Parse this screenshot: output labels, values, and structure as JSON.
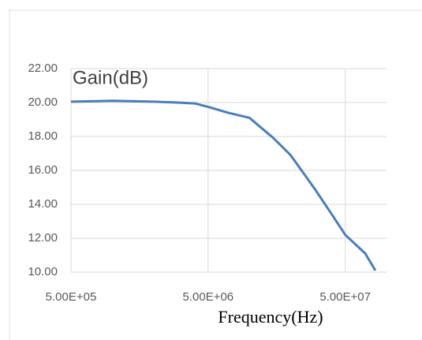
{
  "chart_data": {
    "type": "line",
    "title": "Gain(dB)",
    "x_label": "Frequency(Hz)",
    "x": [
      500000,
      1000000,
      2000000,
      3000000,
      4000000,
      5000000,
      7000000,
      10000000,
      15000000,
      20000000,
      30000000,
      40000000,
      50000000,
      70000000,
      83000000
    ],
    "values": [
      20.05,
      20.1,
      20.05,
      20.0,
      19.95,
      19.75,
      19.4,
      19.1,
      17.9,
      16.9,
      14.9,
      13.4,
      12.2,
      11.1,
      10.1
    ],
    "color": "#4a7ebb",
    "xscale": "log",
    "grid": true,
    "xlim": [
      500000,
      100000000
    ],
    "xticks": [
      {
        "value": 500000,
        "label": "5.00E+05"
      },
      {
        "value": 5000000,
        "label": "5.00E+06"
      },
      {
        "value": 50000000,
        "label": "5.00E+07"
      }
    ],
    "ylim": [
      10,
      22
    ],
    "yticks": [
      {
        "value": 10,
        "label": "10.00"
      },
      {
        "value": 12,
        "label": "12.00"
      },
      {
        "value": 14,
        "label": "14.00"
      },
      {
        "value": 16,
        "label": "16.00"
      },
      {
        "value": 18,
        "label": "18.00"
      },
      {
        "value": 20,
        "label": "20.00"
      },
      {
        "value": 22,
        "label": "22.00"
      }
    ]
  }
}
